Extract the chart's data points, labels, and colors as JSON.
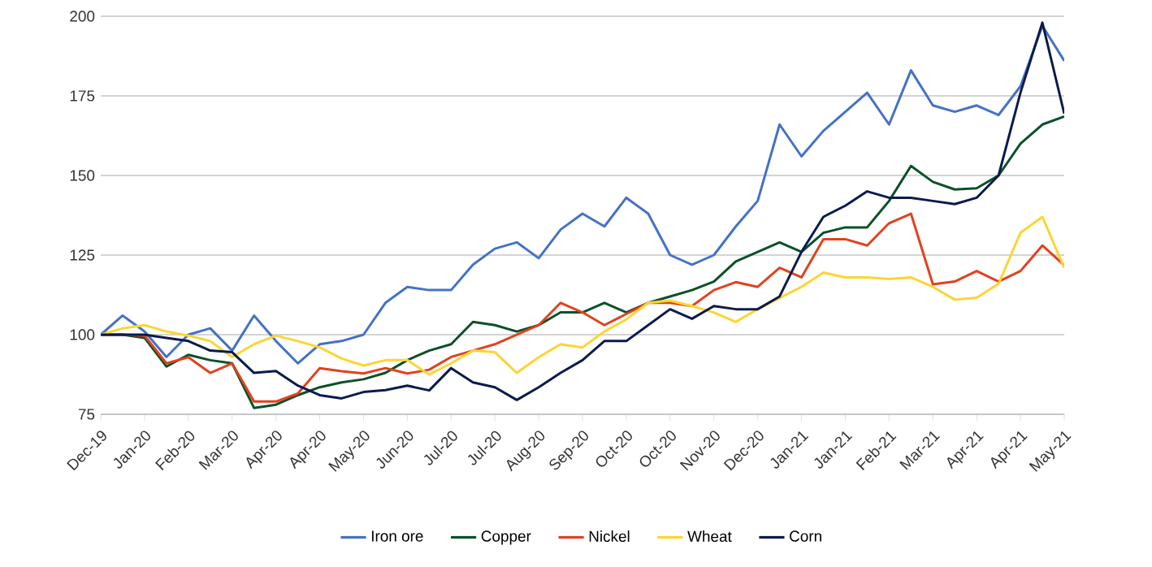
{
  "chart_data": {
    "type": "line",
    "ylim": [
      75,
      200
    ],
    "categories": [
      "Dec-19",
      null,
      "Jan-20",
      null,
      "Feb-20",
      null,
      "Mar-20",
      null,
      "Apr-20",
      null,
      "Apr-20",
      null,
      "May-20",
      null,
      "Jun-20",
      null,
      "Jul-20",
      null,
      "Jul-20",
      null,
      "Aug-20",
      null,
      "Sep-20",
      null,
      "Oct-20",
      null,
      "Oct-20",
      null,
      "Nov-20",
      null,
      "Dec-20",
      null,
      "Jan-21",
      null,
      "Jan-21",
      null,
      "Feb-21",
      null,
      "Mar-21",
      null,
      "Apr-21",
      null,
      "Apr-21",
      null,
      "May-21"
    ],
    "yticks": [
      75,
      100,
      125,
      150,
      175,
      200
    ],
    "grid": "y",
    "legend": "bottom",
    "line_style": "solid",
    "series": [
      {
        "name": "Iron ore",
        "color": "#4472c4",
        "values": [
          100,
          106,
          101,
          93,
          100,
          102,
          95,
          106,
          98,
          91,
          97,
          98,
          100,
          110,
          115,
          114,
          114,
          122,
          127,
          129,
          124,
          133,
          138,
          134,
          143,
          138,
          125,
          122,
          125,
          134,
          142,
          166,
          156,
          164,
          170,
          176,
          166,
          183,
          172,
          170,
          172,
          169,
          178,
          197,
          186
        ]
      },
      {
        "name": "Copper",
        "color": "#0b5028",
        "values": [
          100,
          100,
          99,
          90,
          93.7,
          92,
          91,
          77,
          78,
          81,
          83.5,
          85,
          86,
          88,
          92,
          95,
          97,
          104,
          103,
          101,
          103,
          107,
          107,
          110,
          107,
          110,
          112,
          114,
          116.7,
          123,
          126,
          129,
          126,
          132,
          133.7,
          133.7,
          142,
          153,
          148,
          145.6,
          146,
          150,
          160,
          166,
          168.5
        ]
      },
      {
        "name": "Nickel",
        "color": "#e0421e",
        "values": [
          100,
          100,
          99.7,
          91,
          92.9,
          88,
          91,
          79,
          79,
          81.5,
          89.5,
          88.5,
          87.8,
          89.5,
          87.8,
          89,
          93,
          95,
          97,
          100,
          103,
          110,
          107,
          103,
          106.5,
          110,
          110,
          109,
          114,
          116.5,
          115,
          121,
          118,
          130,
          130,
          128,
          135,
          138,
          115.8,
          116.7,
          120,
          116.7,
          120,
          128,
          121.8
        ]
      },
      {
        "name": "Wheat",
        "color": "#fcd535",
        "values": [
          100,
          102,
          103,
          101,
          99.7,
          98,
          93,
          97,
          99.7,
          98,
          96,
          92.5,
          90.3,
          92,
          92,
          87.5,
          91,
          95,
          94.5,
          88,
          92.9,
          97,
          96,
          101,
          104.8,
          110,
          110.7,
          109,
          107,
          104,
          108,
          111.5,
          115,
          119.5,
          118,
          118,
          117.5,
          118,
          115,
          111,
          111.6,
          116,
          132,
          137,
          121
        ]
      },
      {
        "name": "Corn",
        "color": "#0c1a4c",
        "values": [
          100,
          100,
          100,
          99,
          98,
          95,
          94.5,
          88,
          88.6,
          84,
          81,
          80,
          82,
          82.6,
          84,
          82.5,
          89.5,
          85,
          83.5,
          79.5,
          83.5,
          88,
          92,
          98,
          98,
          103,
          108,
          105,
          109,
          108,
          108,
          112,
          126,
          137,
          140.5,
          145,
          143,
          143,
          142,
          141,
          143,
          150,
          176,
          198,
          169.4
        ]
      }
    ]
  }
}
